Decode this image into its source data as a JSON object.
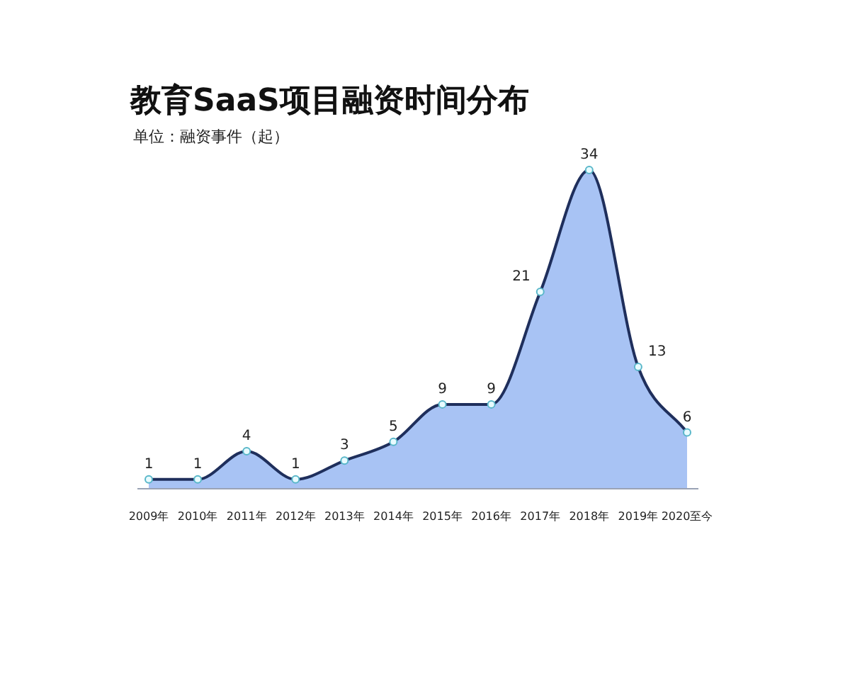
{
  "chart_data": {
    "type": "area",
    "title": "教育SaaS项目融资时间分布",
    "subtitle": "单位：融资事件（起）",
    "categories": [
      "2009年",
      "2010年",
      "2011年",
      "2012年",
      "2013年",
      "2014年",
      "2015年",
      "2016年",
      "2017年",
      "2018年",
      "2019年",
      "2020至今"
    ],
    "values": [
      1,
      1,
      4,
      1,
      3,
      5,
      9,
      9,
      21,
      34,
      13,
      6
    ],
    "color": "#a8c3f4",
    "data_labels": true,
    "marker": "circle"
  }
}
